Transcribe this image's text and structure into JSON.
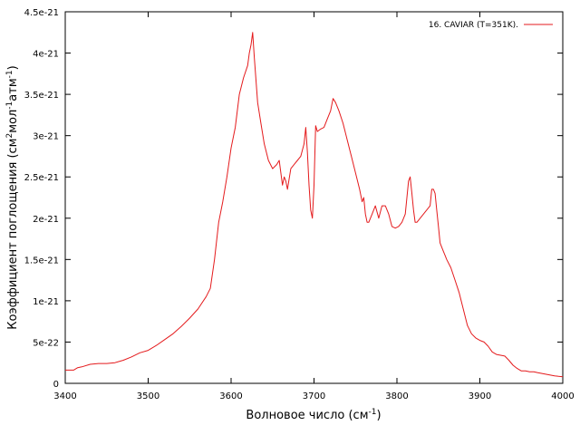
{
  "chart_data": {
    "type": "line",
    "xlabel_main": "Волновое число (см",
    "xlabel_sup": "-1",
    "xlabel_close": ")",
    "ylabel_part1": "Коэффициент поглощения (см",
    "ylabel_sup1": "2",
    "ylabel_part2": "мол",
    "ylabel_sup2": "-1",
    "ylabel_part3": "атм",
    "ylabel_sup3": "-1",
    "ylabel_close": ")",
    "xlim": [
      3400,
      4000
    ],
    "ylim": [
      0,
      4.5e-21
    ],
    "x_ticks": [
      3400,
      3500,
      3600,
      3700,
      3800,
      3900,
      4000
    ],
    "x_tick_labels": [
      "3400",
      "3500",
      "3600",
      "3700",
      "3800",
      "3900",
      "4000"
    ],
    "y_ticks": [
      0,
      5e-22,
      1e-21,
      1.5e-21,
      2e-21,
      2.5e-21,
      3e-21,
      3.5e-21,
      4e-21,
      4.5e-21
    ],
    "y_tick_labels": [
      "0",
      "5e-22",
      "1e-21",
      "1.5e-21",
      "2e-21",
      "2.5e-21",
      "3e-21",
      "3.5e-21",
      "4e-21",
      "4.5e-21"
    ],
    "grid": false,
    "legend_position": "top-right",
    "series": [
      {
        "name": "16. CAVIAR (T=351K).",
        "color": "#e41a1c",
        "x": [
          3400,
          3410,
          3415,
          3420,
          3430,
          3440,
          3450,
          3460,
          3470,
          3480,
          3490,
          3500,
          3510,
          3520,
          3530,
          3540,
          3550,
          3560,
          3570,
          3575,
          3580,
          3585,
          3590,
          3595,
          3600,
          3605,
          3610,
          3615,
          3620,
          3622,
          3624,
          3626,
          3628,
          3632,
          3636,
          3640,
          3645,
          3650,
          3655,
          3658,
          3660,
          3662,
          3664,
          3666,
          3668,
          3672,
          3676,
          3680,
          3684,
          3688,
          3690,
          3692,
          3694,
          3696,
          3698,
          3700,
          3702,
          3704,
          3708,
          3712,
          3716,
          3720,
          3723,
          3726,
          3730,
          3735,
          3740,
          3745,
          3750,
          3755,
          3758,
          3760,
          3762,
          3764,
          3766,
          3770,
          3774,
          3778,
          3782,
          3786,
          3790,
          3794,
          3798,
          3802,
          3806,
          3810,
          3812,
          3814,
          3816,
          3818,
          3820,
          3822,
          3824,
          3828,
          3832,
          3836,
          3840,
          3842,
          3844,
          3846,
          3848,
          3850,
          3852,
          3854,
          3856,
          3858,
          3860,
          3865,
          3870,
          3875,
          3880,
          3885,
          3890,
          3895,
          3900,
          3905,
          3910,
          3915,
          3920,
          3925,
          3930,
          3935,
          3940,
          3945,
          3950,
          3955,
          3960,
          3965,
          3970,
          3975,
          3980,
          3985,
          3990,
          3995,
          4000
        ],
        "y": [
          1.6e-22,
          1.6e-22,
          1.9e-22,
          2e-22,
          2.3e-22,
          2.4e-22,
          2.4e-22,
          2.5e-22,
          2.8e-22,
          3.2e-22,
          3.7e-22,
          4e-22,
          4.6e-22,
          5.3e-22,
          6e-22,
          6.9e-22,
          7.9e-22,
          9e-22,
          1.05e-21,
          1.15e-21,
          1.5e-21,
          1.95e-21,
          2.2e-21,
          2.5e-21,
          2.85e-21,
          3.1e-21,
          3.5e-21,
          3.7e-21,
          3.85e-21,
          4e-21,
          4.1e-21,
          4.25e-21,
          3.95e-21,
          3.4e-21,
          3.15e-21,
          2.9e-21,
          2.7e-21,
          2.6e-21,
          2.65e-21,
          2.7e-21,
          2.55e-21,
          2.4e-21,
          2.5e-21,
          2.45e-21,
          2.35e-21,
          2.6e-21,
          2.65e-21,
          2.7e-21,
          2.75e-21,
          2.9e-21,
          3.1e-21,
          2.8e-21,
          2.4e-21,
          2.1e-21,
          2e-21,
          2.4e-21,
          3.12e-21,
          3.05e-21,
          3.08e-21,
          3.1e-21,
          3.2e-21,
          3.3e-21,
          3.45e-21,
          3.4e-21,
          3.3e-21,
          3.15e-21,
          2.95e-21,
          2.75e-21,
          2.55e-21,
          2.35e-21,
          2.2e-21,
          2.25e-21,
          2.05e-21,
          1.95e-21,
          1.95e-21,
          2.05e-21,
          2.15e-21,
          2e-21,
          2.15e-21,
          2.15e-21,
          2.05e-21,
          1.9e-21,
          1.88e-21,
          1.9e-21,
          1.95e-21,
          2.05e-21,
          2.25e-21,
          2.45e-21,
          2.5e-21,
          2.3e-21,
          2.1e-21,
          1.95e-21,
          1.95e-21,
          2e-21,
          2.05e-21,
          2.1e-21,
          2.15e-21,
          2.35e-21,
          2.35e-21,
          2.3e-21,
          2.1e-21,
          1.9e-21,
          1.7e-21,
          1.65e-21,
          1.6e-21,
          1.55e-21,
          1.5e-21,
          1.4e-21,
          1.25e-21,
          1.1e-21,
          9e-22,
          7e-22,
          6e-22,
          5.5e-22,
          5.2e-22,
          5e-22,
          4.5e-22,
          3.8e-22,
          3.5e-22,
          3.4e-22,
          3.3e-22,
          2.8e-22,
          2.2e-22,
          1.8e-22,
          1.5e-22,
          1.5e-22,
          1.4e-22,
          1.4e-22,
          1.3e-22,
          1.2e-22,
          1.1e-22,
          1e-22,
          9e-23,
          8.5e-23,
          8e-23
        ]
      }
    ]
  }
}
